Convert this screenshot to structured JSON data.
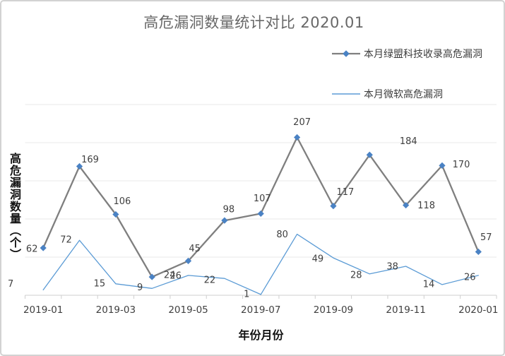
{
  "title": "高危漏洞数量统计对比 2020.01",
  "legend": {
    "position": "top-right",
    "items": [
      {
        "label": "本月绿盟科技收录高危漏洞"
      },
      {
        "label": "本月微软高危漏洞"
      }
    ]
  },
  "axes": {
    "x_title": "年份月份",
    "y_title": "高危漏洞数量（个）",
    "x_tick_labels_shown": [
      "2019-01",
      "2019-03",
      "2019-05",
      "2019-07",
      "2019-09",
      "2019-11",
      "2020-01"
    ]
  },
  "chart_data": {
    "type": "line",
    "title": "高危漏洞数量统计对比 2020.01",
    "xlabel": "年份月份",
    "ylabel": "高危漏洞数量（个）",
    "categories": [
      "2019-01",
      "2019-02",
      "2019-03",
      "2019-04",
      "2019-05",
      "2019-06",
      "2019-07",
      "2019-08",
      "2019-09",
      "2019-10",
      "2019-11",
      "2019-12",
      "2020-01"
    ],
    "series": [
      {
        "name": "本月绿盟科技收录高危漏洞",
        "color": "#7f7f7f",
        "line_width": 2.3,
        "marker": "diamond",
        "marker_color": "#4a82c4",
        "values": [
          62,
          169,
          106,
          24,
          45,
          98,
          107,
          207,
          117,
          184,
          118,
          170,
          57
        ],
        "label_offsets": [
          [
            -16,
            1
          ],
          [
            15,
            -10
          ],
          [
            9,
            -19
          ],
          [
            25,
            -3
          ],
          [
            9,
            -18
          ],
          [
            6,
            -16
          ],
          [
            2,
            -22
          ],
          [
            7,
            -22
          ],
          [
            17,
            -20
          ],
          [
            55,
            -20
          ],
          [
            29,
            0
          ],
          [
            27,
            -2
          ],
          [
            11,
            -21
          ]
        ]
      },
      {
        "name": "本月微软高危漏洞",
        "color": "#5b9bd5",
        "line_width": 1.3,
        "marker": "none",
        "values": [
          7,
          72,
          15,
          9,
          26,
          22,
          1,
          80,
          49,
          28,
          38,
          14,
          26
        ],
        "label_offsets": [
          [
            -46,
            -9
          ],
          [
            -19,
            -1
          ],
          [
            -23,
            -1
          ],
          [
            -17,
            -2
          ],
          [
            -18,
            0
          ],
          [
            -21,
            2
          ],
          [
            -20,
            -1
          ],
          [
            -21,
            0
          ],
          [
            -22,
            1
          ],
          [
            -19,
            1
          ],
          [
            -19,
            0
          ],
          [
            -19,
            -1
          ],
          [
            -12,
            2
          ]
        ]
      }
    ],
    "ylim": [
      0,
      250
    ],
    "grid": "horizontal gridlines every 50, no y tick labels",
    "x_tick_labels_every": 2,
    "legend_position": "top-right",
    "label_color": "#404040",
    "grid_color": "#e9e9e9",
    "axis_color": "#cfcfcf"
  }
}
